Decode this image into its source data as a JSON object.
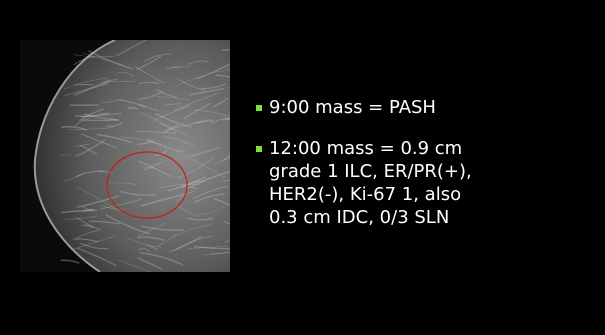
{
  "bullets": [
    {
      "lines": [
        "9:00 mass = PASH"
      ]
    },
    {
      "lines": [
        "12:00 mass = 0.9 cm",
        "grade 1 ILC, ER/PR(+),",
        "HER2(-), Ki-67 1, also",
        "0.3 cm IDC, 0/3 SLN"
      ]
    }
  ]
}
